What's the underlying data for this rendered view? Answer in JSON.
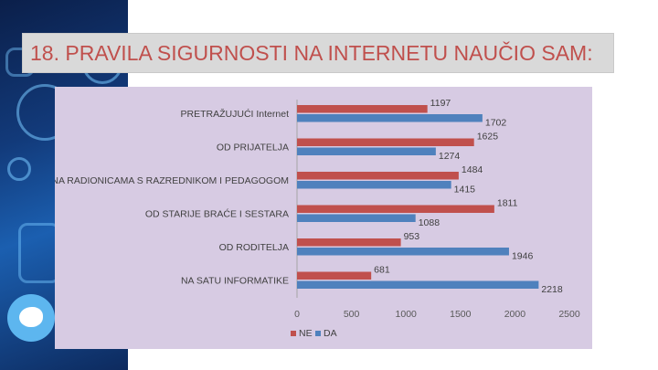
{
  "slide": {
    "title": "18. PRAVILA SIGURNOSTI NA INTERNETU NAUČIO SAM:"
  },
  "colors": {
    "title": "#c0504d",
    "series_ne": "#c0504d",
    "series_da": "#4f81bd",
    "chart_background": "#d7cbe3"
  },
  "chart_data": {
    "type": "bar",
    "orientation": "horizontal",
    "categories": [
      "PRETRAŽUJUĆI Internet",
      "OD PRIJATELJA",
      "NA RADIONICAMA S RAZREDNIKOM I PEDAGOGOM",
      "OD STARIJE BRAĆE I SESTARA",
      "OD RODITELJA",
      "NA SATU INFORMATIKE"
    ],
    "series": [
      {
        "name": "NE",
        "values": [
          1197,
          1625,
          1484,
          1811,
          953,
          681
        ]
      },
      {
        "name": "DA",
        "values": [
          1702,
          1274,
          1415,
          1088,
          1946,
          2218
        ]
      }
    ],
    "xlim": [
      0,
      2500
    ],
    "xticks": [
      0,
      500,
      1000,
      1500,
      2000,
      2500
    ],
    "grid": false,
    "legend_position": "bottom-left"
  }
}
